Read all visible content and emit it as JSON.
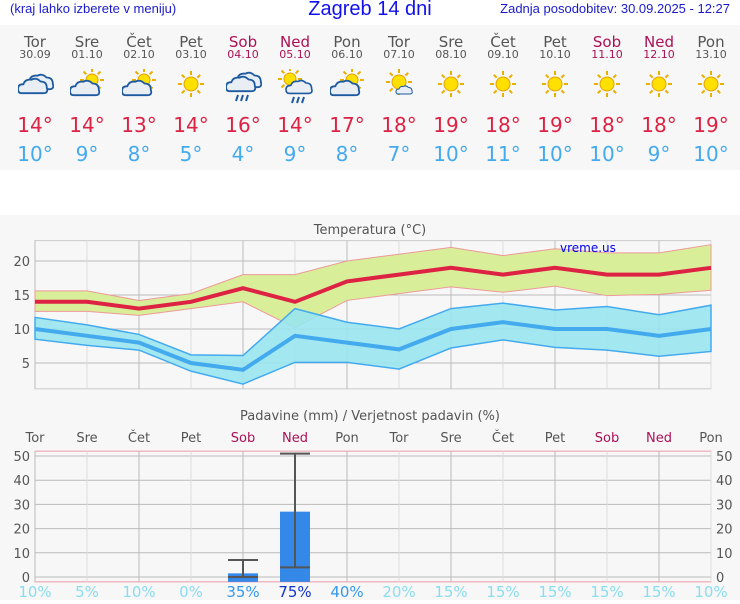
{
  "header": {
    "hint": "(kraj lahko izberete v meniju)",
    "title": "Zagreb 14 dni",
    "updated": "Zadnja posodobitev: 30.09.2025 - 12:27"
  },
  "days": [
    {
      "name": "Tor",
      "date": "30.09",
      "weekend": false,
      "icon": "cloudy",
      "max": "14°",
      "min": "10°"
    },
    {
      "name": "Sre",
      "date": "01.10",
      "weekend": false,
      "icon": "partly-cloudy",
      "max": "14°",
      "min": "9°"
    },
    {
      "name": "Čet",
      "date": "02.10",
      "weekend": false,
      "icon": "partly-cloudy",
      "max": "13°",
      "min": "8°"
    },
    {
      "name": "Pet",
      "date": "03.10",
      "weekend": false,
      "icon": "sunny",
      "max": "14°",
      "min": "5°"
    },
    {
      "name": "Sob",
      "date": "04.10",
      "weekend": true,
      "icon": "cloudy-rain",
      "max": "16°",
      "min": "4°"
    },
    {
      "name": "Ned",
      "date": "05.10",
      "weekend": true,
      "icon": "sun-cloud-rain",
      "max": "14°",
      "min": "9°"
    },
    {
      "name": "Pon",
      "date": "06.10",
      "weekend": false,
      "icon": "partly-cloudy",
      "max": "17°",
      "min": "8°"
    },
    {
      "name": "Tor",
      "date": "07.10",
      "weekend": false,
      "icon": "mostly-sunny",
      "max": "18°",
      "min": "7°"
    },
    {
      "name": "Sre",
      "date": "08.10",
      "weekend": false,
      "icon": "sunny",
      "max": "19°",
      "min": "10°"
    },
    {
      "name": "Čet",
      "date": "09.10",
      "weekend": false,
      "icon": "sunny",
      "max": "18°",
      "min": "11°"
    },
    {
      "name": "Pet",
      "date": "10.10",
      "weekend": false,
      "icon": "sunny",
      "max": "19°",
      "min": "10°"
    },
    {
      "name": "Sob",
      "date": "11.10",
      "weekend": true,
      "icon": "sunny",
      "max": "18°",
      "min": "10°"
    },
    {
      "name": "Ned",
      "date": "12.10",
      "weekend": true,
      "icon": "sunny",
      "max": "18°",
      "min": "9°"
    },
    {
      "name": "Pon",
      "date": "13.10",
      "weekend": false,
      "icon": "sunny",
      "max": "19°",
      "min": "10°"
    }
  ],
  "colors": {
    "max": "#dd2244",
    "min": "#44aaee",
    "max_band": "#d8ee99",
    "min_band": "#99e4f0",
    "weekend": "#aa1155",
    "bar": "#3388e8"
  },
  "chart_data": [
    {
      "type": "line",
      "title": "Temperatura (°C)",
      "watermark": "vreme.us",
      "ylim": [
        1.2,
        23
      ],
      "yticks": [
        5,
        10,
        15,
        20
      ],
      "grid": true,
      "x": [
        "30.09",
        "01.10",
        "02.10",
        "03.10",
        "04.10",
        "05.10",
        "06.10",
        "07.10",
        "08.10",
        "09.10",
        "10.10",
        "11.10",
        "12.10",
        "13.10"
      ],
      "series": [
        {
          "role": "max",
          "values": [
            14,
            14,
            13,
            14,
            16,
            14,
            17,
            18,
            19,
            18,
            19,
            18,
            18,
            19
          ],
          "band_low": [
            12.6,
            12.6,
            12,
            13,
            14,
            10.2,
            14.2,
            15.2,
            16.2,
            15.4,
            16.3,
            14.9,
            15.1,
            15.7
          ],
          "band_high": [
            15.6,
            15.6,
            14.2,
            15.2,
            18,
            18,
            20,
            21,
            22,
            20.8,
            21.8,
            21.2,
            21.2,
            22.4
          ]
        },
        {
          "role": "min",
          "values": [
            10,
            9,
            8,
            5,
            4,
            9,
            8,
            7,
            10,
            11,
            10,
            10,
            9,
            10
          ],
          "band_low": [
            8.5,
            7.6,
            6.9,
            3.8,
            1.9,
            5.1,
            5.1,
            4.1,
            7.2,
            8.4,
            7.3,
            6.9,
            6,
            6.7
          ],
          "band_high": [
            11.7,
            10.6,
            9.2,
            6.2,
            6.1,
            13,
            11,
            10,
            13,
            13.8,
            12.8,
            13.3,
            12.1,
            13.5
          ]
        }
      ]
    },
    {
      "type": "bar",
      "title": "Padavine (mm) / Verjetnost padavin (%)",
      "ylim": [
        0,
        52
      ],
      "yticks": [
        0,
        10,
        20,
        30,
        40,
        50
      ],
      "grid": true,
      "categories": [
        "Tor",
        "Sre",
        "Čet",
        "Pet",
        "Sob",
        "Ned",
        "Pon",
        "Tor",
        "Sre",
        "Čet",
        "Pet",
        "Sob",
        "Ned",
        "Pon"
      ],
      "values": [
        0,
        0,
        0,
        0,
        1.5,
        27,
        0,
        0,
        0,
        0,
        0,
        0,
        0,
        0
      ],
      "error_low": [
        null,
        null,
        null,
        null,
        0,
        4,
        null,
        null,
        null,
        null,
        null,
        null,
        null,
        null
      ],
      "error_high": [
        null,
        null,
        null,
        null,
        7,
        51,
        null,
        null,
        null,
        null,
        null,
        null,
        null,
        null
      ],
      "probability": [
        "10%",
        "5%",
        "10%",
        "0%",
        "35%",
        "75%",
        "40%",
        "20%",
        "15%",
        "15%",
        "15%",
        "15%",
        "15%",
        "10%"
      ]
    }
  ]
}
